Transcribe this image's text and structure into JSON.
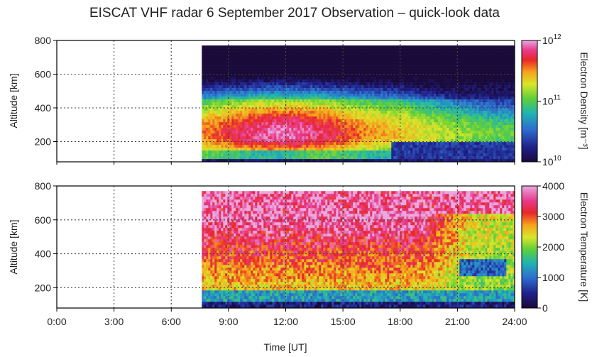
{
  "title": "EISCAT VHF radar 6 September 2017 Observation  – quick-look data",
  "chart_data": [
    {
      "type": "heatmap",
      "panel": "top",
      "ylabel": "Altitude [km]",
      "xlabel": "",
      "ylim": [
        80,
        800
      ],
      "xlim": [
        0,
        24
      ],
      "yticks": [
        "200",
        "400",
        "600",
        "800"
      ],
      "yticks_values": [
        200,
        400,
        600,
        800
      ],
      "colorbar": {
        "label": "Electron Density [m⁻³]",
        "scale": "log",
        "range": [
          10000000000.0,
          1000000000000.0
        ],
        "ticks": [
          {
            "base": "10",
            "exp": "12",
            "value": 1000000000000.0
          },
          {
            "base": "10",
            "exp": "11",
            "value": 100000000000.0
          },
          {
            "base": "10",
            "exp": "10",
            "value": 10000000000.0
          }
        ]
      },
      "data_coverage": {
        "start_hour": 7.6,
        "end_hour": 24,
        "min_alt": 80,
        "max_alt": 770
      },
      "grid": true
    },
    {
      "type": "heatmap",
      "panel": "bottom",
      "ylabel": "Altitude [km]",
      "xlabel": "Time [UT]",
      "ylim": [
        80,
        800
      ],
      "xlim": [
        0,
        24
      ],
      "yticks": [
        "200",
        "400",
        "600",
        "800"
      ],
      "yticks_values": [
        200,
        400,
        600,
        800
      ],
      "xticks": [
        "0:00",
        "3:00",
        "6:00",
        "9:00",
        "12:00",
        "15:00",
        "18:00",
        "21:00",
        "24:00"
      ],
      "xticks_values": [
        0,
        3,
        6,
        9,
        12,
        15,
        18,
        21,
        24
      ],
      "colorbar": {
        "label": "Electron Temperature [K]",
        "scale": "linear",
        "range": [
          0,
          4000
        ],
        "ticks": [
          {
            "label": "4000",
            "value": 4000
          },
          {
            "label": "3000",
            "value": 3000
          },
          {
            "label": "2000",
            "value": 2000
          },
          {
            "label": "1000",
            "value": 1000
          },
          {
            "label": "0",
            "value": 0
          }
        ]
      },
      "data_coverage": {
        "start_hour": 7.6,
        "end_hour": 24,
        "min_alt": 80,
        "max_alt": 770
      },
      "grid": true
    }
  ],
  "colors": {
    "grid": "#444444",
    "frame": "#000000",
    "empty": "#ffffff"
  }
}
